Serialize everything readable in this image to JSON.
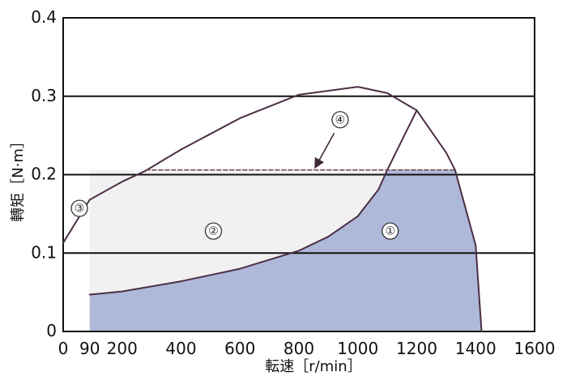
{
  "chart_data": {
    "type": "area",
    "xlabel": "転速［r/min］",
    "ylabel": "轉矩［N·m］",
    "xlim": [
      0,
      1600
    ],
    "ylim": [
      0,
      0.4
    ],
    "x_ticks": [
      0,
      90,
      200,
      400,
      600,
      800,
      1000,
      1200,
      1400,
      1600
    ],
    "y_ticks": [
      0,
      0.1,
      0.2,
      0.3,
      0.4
    ],
    "grid": "horizontal",
    "colors": {
      "region_1_fill": "#aeb8d8",
      "region_2_fill": "#f1f1f1",
      "line": "#4b2f45",
      "grid": "#111111",
      "dashed_line": "#7a4a58"
    },
    "series": [
      {
        "values": [
          {
            "x": 0,
            "y": 0.113
          },
          {
            "x": 90,
            "y": 0.168
          },
          {
            "x": 200,
            "y": 0.191
          },
          {
            "x": 280,
            "y": 0.205
          },
          {
            "x": 400,
            "y": 0.232
          },
          {
            "x": 600,
            "y": 0.272
          },
          {
            "x": 800,
            "y": 0.302
          },
          {
            "x": 1000,
            "y": 0.312
          },
          {
            "x": 1100,
            "y": 0.304
          },
          {
            "x": 1200,
            "y": 0.282
          },
          {
            "x": 1300,
            "y": 0.228
          },
          {
            "x": 1330,
            "y": 0.206
          },
          {
            "x": 1400,
            "y": 0.11
          },
          {
            "x": 1420,
            "y": 0.0
          }
        ]
      },
      {
        "values": [
          {
            "x": 90,
            "y": 0.047
          },
          {
            "x": 200,
            "y": 0.051
          },
          {
            "x": 400,
            "y": 0.064
          },
          {
            "x": 600,
            "y": 0.08
          },
          {
            "x": 800,
            "y": 0.103
          },
          {
            "x": 900,
            "y": 0.121
          },
          {
            "x": 1000,
            "y": 0.147
          },
          {
            "x": 1070,
            "y": 0.181
          },
          {
            "x": 1100,
            "y": 0.206
          },
          {
            "x": 1200,
            "y": 0.282
          }
        ]
      },
      {
        "values": [
          {
            "x": 280,
            "y": 0.206
          },
          {
            "x": 1330,
            "y": 0.206
          }
        ]
      }
    ],
    "regions": [
      {
        "label": "①",
        "upper": [
          {
            "x": 90,
            "y": 0.047
          },
          {
            "x": 200,
            "y": 0.051
          },
          {
            "x": 400,
            "y": 0.064
          },
          {
            "x": 600,
            "y": 0.08
          },
          {
            "x": 800,
            "y": 0.103
          },
          {
            "x": 900,
            "y": 0.121
          },
          {
            "x": 1000,
            "y": 0.147
          },
          {
            "x": 1070,
            "y": 0.181
          },
          {
            "x": 1100,
            "y": 0.206
          },
          {
            "x": 1330,
            "y": 0.206
          },
          {
            "x": 1400,
            "y": 0.11
          },
          {
            "x": 1420,
            "y": 0.0
          }
        ],
        "base_start_x": 90
      },
      {
        "label": "②",
        "polygon": [
          {
            "x": 90,
            "y": 0.206
          },
          {
            "x": 1100,
            "y": 0.206
          },
          {
            "x": 1070,
            "y": 0.181
          },
          {
            "x": 1000,
            "y": 0.147
          },
          {
            "x": 900,
            "y": 0.121
          },
          {
            "x": 800,
            "y": 0.103
          },
          {
            "x": 600,
            "y": 0.08
          },
          {
            "x": 400,
            "y": 0.064
          },
          {
            "x": 200,
            "y": 0.051
          },
          {
            "x": 90,
            "y": 0.047
          }
        ]
      }
    ],
    "annotations": [
      {
        "label": "①",
        "x": 1110,
        "y": 0.128
      },
      {
        "label": "②",
        "x": 510,
        "y": 0.128
      },
      {
        "label": "③",
        "x": 55,
        "y": 0.157
      },
      {
        "label": "④",
        "x": 940,
        "y": 0.27
      }
    ],
    "arrow": {
      "from": {
        "x": 920,
        "y": 0.253
      },
      "to": {
        "x": 855,
        "y": 0.209
      }
    }
  }
}
